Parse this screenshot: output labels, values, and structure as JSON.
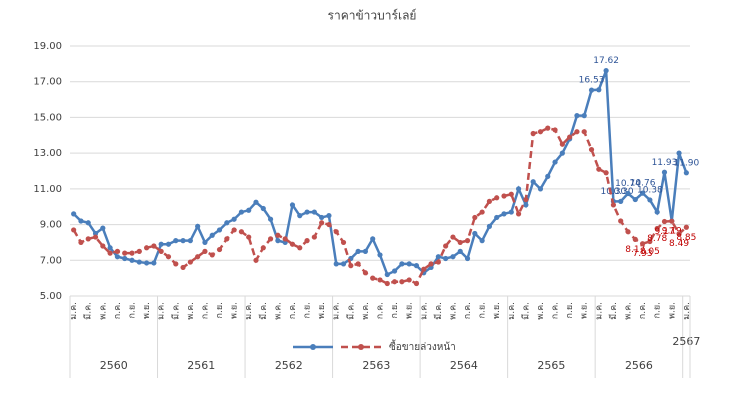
{
  "chart_data": {
    "type": "line",
    "title": "ราคาข้าวบาร์เลย์",
    "categories": [
      "ม.ค.",
      null,
      "มี.ค.",
      null,
      "พ.ค.",
      null,
      "ก.ค.",
      null,
      "ก.ย.",
      null,
      "พ.ย.",
      null,
      "ม.ค.",
      null,
      "มี.ค.",
      null,
      "พ.ค.",
      null,
      "ก.ค.",
      null,
      "ก.ย.",
      null,
      "พ.ย.",
      null,
      "ม.ค.",
      null,
      "มี.ค.",
      null,
      "พ.ค.",
      null,
      "ก.ค.",
      null,
      "ก.ย.",
      null,
      "พ.ย.",
      null,
      "ม.ค.",
      null,
      "มี.ค.",
      null,
      "พ.ค.",
      null,
      "ก.ค.",
      null,
      "ก.ย.",
      null,
      "พ.ย.",
      null,
      "ม.ค.",
      null,
      "มี.ค.",
      null,
      "พ.ค.",
      null,
      "ก.ค.",
      null,
      "ก.ย.",
      null,
      "พ.ย.",
      null,
      "ม.ค.",
      null,
      "มี.ค.",
      null,
      "พ.ค.",
      null,
      "ก.ค.",
      null,
      "ก.ย.",
      null,
      "พ.ย.",
      null,
      "ม.ค.",
      null,
      "มี.ค.",
      null,
      "พ.ค.",
      null,
      "ก.ค.",
      null,
      "ก.ย.",
      null,
      "พ.ย.",
      null,
      "ม.ค."
    ],
    "year_groups": [
      "2560",
      "2561",
      "2562",
      "2563",
      "2564",
      "2565",
      "2566",
      "2567"
    ],
    "series": [
      {
        "color": "#4a7ebb",
        "style": "solid",
        "values": [
          9.6,
          9.2,
          9.1,
          8.5,
          8.8,
          7.7,
          7.2,
          7.1,
          7.0,
          6.9,
          6.85,
          6.85,
          7.9,
          7.9,
          8.1,
          8.1,
          8.1,
          8.9,
          8.0,
          8.4,
          8.7,
          9.1,
          9.3,
          9.7,
          9.8,
          10.25,
          9.9,
          9.3,
          8.1,
          8.0,
          10.1,
          9.5,
          9.7,
          9.7,
          9.4,
          9.5,
          6.8,
          6.8,
          7.1,
          7.5,
          7.5,
          8.2,
          7.3,
          6.2,
          6.4,
          6.8,
          6.8,
          6.7,
          6.3,
          6.6,
          7.2,
          7.1,
          7.2,
          7.5,
          7.1,
          8.5,
          8.1,
          8.9,
          9.4,
          9.6,
          9.7,
          11.0,
          10.1,
          11.4,
          11.0,
          11.7,
          12.5,
          13.0,
          13.8,
          15.1,
          15.1,
          16.53,
          16.55,
          17.62,
          10.3,
          10.3,
          10.74,
          10.4,
          10.76,
          10.38,
          9.7,
          11.93,
          9.2,
          13.0,
          11.9
        ],
        "value_labels": [
          null,
          null,
          null,
          null,
          null,
          null,
          null,
          null,
          null,
          null,
          null,
          null,
          null,
          null,
          null,
          null,
          null,
          null,
          null,
          null,
          null,
          null,
          null,
          null,
          null,
          null,
          null,
          null,
          null,
          null,
          null,
          null,
          null,
          null,
          null,
          null,
          null,
          null,
          null,
          null,
          null,
          null,
          null,
          null,
          null,
          null,
          null,
          null,
          null,
          null,
          null,
          null,
          null,
          null,
          null,
          null,
          null,
          null,
          null,
          null,
          null,
          null,
          null,
          null,
          null,
          null,
          null,
          null,
          null,
          null,
          null,
          "16.53",
          null,
          "17.62",
          "10.30",
          "10.30",
          "10.74",
          null,
          "10.76",
          "10.38",
          null,
          "11.93",
          null,
          null,
          "11.90"
        ]
      },
      {
        "name": "ซื้อขายล่วงหน้า",
        "color": "#c0504d",
        "style": "dashed",
        "values": [
          8.7,
          8.0,
          8.2,
          8.3,
          7.8,
          7.4,
          7.5,
          7.4,
          7.4,
          7.5,
          7.7,
          7.8,
          7.5,
          7.2,
          6.8,
          6.6,
          6.9,
          7.2,
          7.5,
          7.3,
          7.6,
          8.2,
          8.7,
          8.6,
          8.3,
          7.0,
          7.7,
          8.2,
          8.4,
          8.2,
          7.9,
          7.7,
          8.1,
          8.3,
          9.1,
          9.0,
          8.6,
          8.0,
          6.7,
          6.8,
          6.3,
          6.0,
          5.9,
          5.7,
          5.8,
          5.8,
          5.9,
          5.7,
          6.5,
          6.8,
          6.9,
          7.8,
          8.3,
          8.0,
          8.1,
          9.4,
          9.7,
          10.3,
          10.5,
          10.6,
          10.7,
          9.6,
          10.4,
          14.1,
          14.2,
          14.4,
          14.3,
          13.5,
          13.9,
          14.2,
          14.2,
          13.2,
          12.1,
          11.9,
          10.1,
          9.2,
          8.6,
          8.17,
          7.93,
          8.05,
          8.78,
          9.17,
          9.19,
          8.49,
          8.85
        ],
        "value_labels": [
          null,
          null,
          null,
          null,
          null,
          null,
          null,
          null,
          null,
          null,
          null,
          null,
          null,
          null,
          null,
          null,
          null,
          null,
          null,
          null,
          null,
          null,
          null,
          null,
          null,
          null,
          null,
          null,
          null,
          null,
          null,
          null,
          null,
          null,
          null,
          null,
          null,
          null,
          null,
          null,
          null,
          null,
          null,
          null,
          null,
          null,
          null,
          null,
          null,
          null,
          null,
          null,
          null,
          null,
          null,
          null,
          null,
          null,
          null,
          null,
          null,
          null,
          null,
          null,
          null,
          null,
          null,
          null,
          null,
          null,
          null,
          null,
          null,
          null,
          null,
          null,
          null,
          "8.17",
          "7.93",
          "8.05",
          "8.78",
          "9.17",
          "9.19",
          "8.49",
          "8.85"
        ]
      }
    ],
    "ylim": [
      5,
      19
    ],
    "yticks": [
      {
        "value": 5,
        "label": "5.00"
      },
      {
        "value": 7,
        "label": "7.00"
      },
      {
        "value": 9,
        "label": "9.00"
      },
      {
        "value": 11,
        "label": "11.00"
      },
      {
        "value": 13,
        "label": "13.00"
      },
      {
        "value": 15,
        "label": "15.00"
      },
      {
        "value": 17,
        "label": "17.00"
      },
      {
        "value": 19,
        "label": "19.00"
      }
    ],
    "grid": true,
    "legend": "bottom"
  }
}
